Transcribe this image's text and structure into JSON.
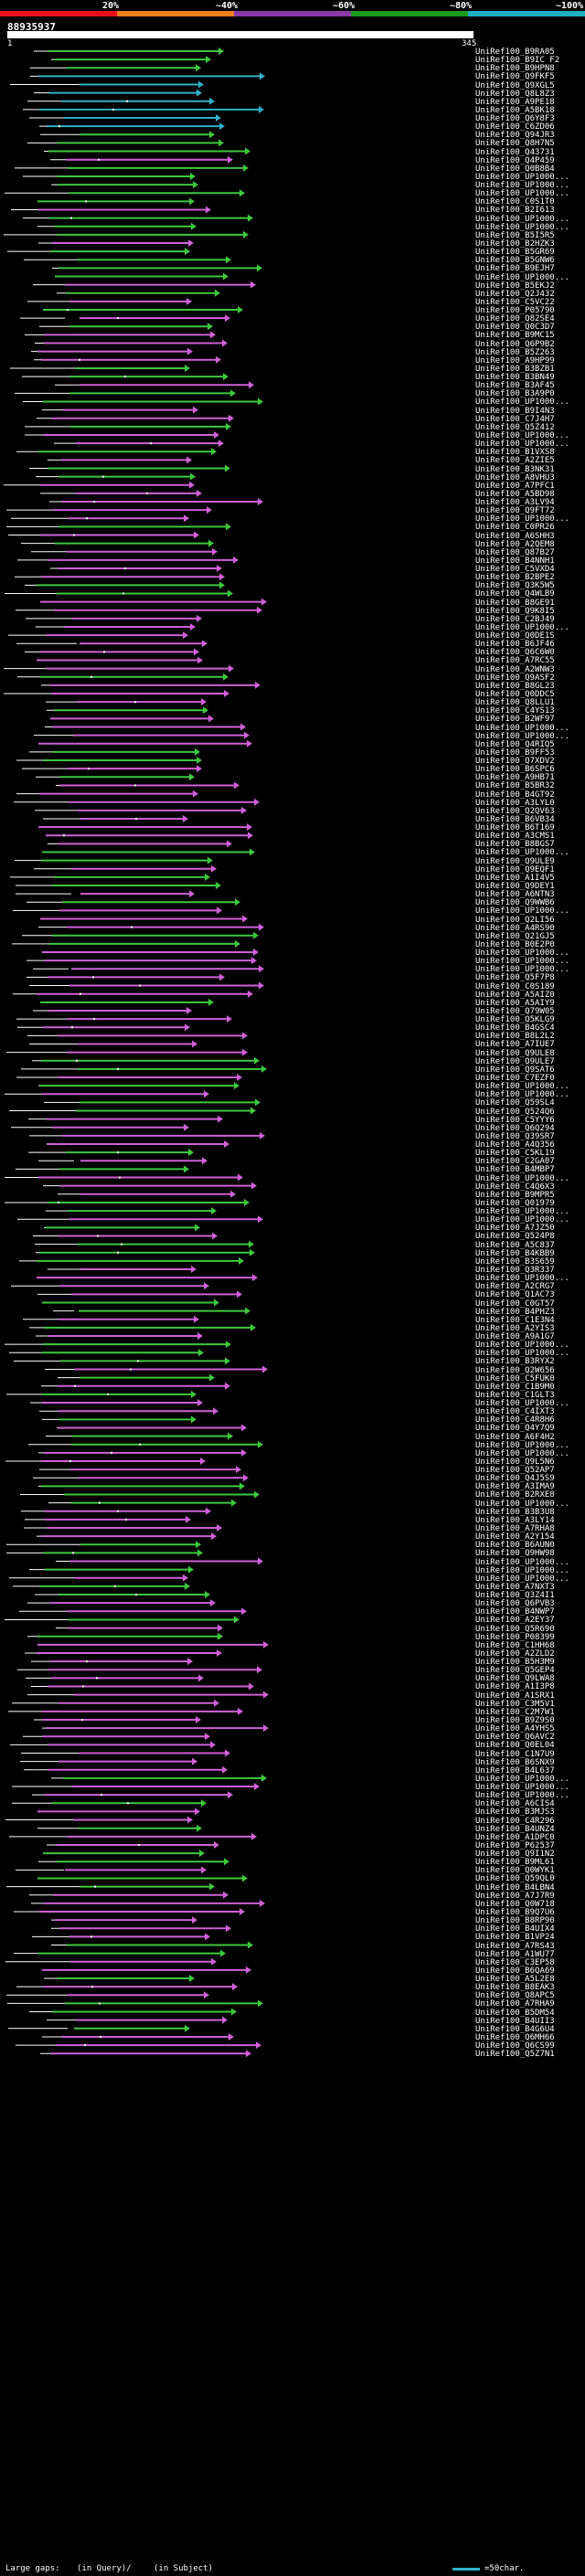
{
  "header": {
    "query_id": "88935937",
    "query_start": "1",
    "query_end": "345",
    "scale": [
      {
        "label": "20%",
        "color": "#e8101c"
      },
      {
        "label": "~40%",
        "color": "#f07f1e"
      },
      {
        "label": "~60%",
        "color": "#8a3aa8"
      },
      {
        "label": "~80%",
        "color": "#1a9a1a"
      },
      {
        "label": "~100%",
        "color": "#1ab0c0"
      }
    ]
  },
  "colors": {
    "high": "#2fb0c8",
    "mid": "#3ec83e",
    "low": "#d060d8",
    "dot": "#ffffff",
    "line": "#ffffff"
  },
  "hits": [
    "UniRef100_B9RA05",
    "UniRef100_B9IC F2",
    "UniRef100_B9HPN8",
    "UniRef100_Q9FKF5",
    "UniRef100_Q9XGL5",
    "UniRef100_Q8L8Z3",
    "UniRef100_A9PE18",
    "UniRef100_A5BK18",
    "UniRef100_Q6Y8F3",
    "UniRef100_C6ZD06",
    "UniRef100_Q94JR3",
    "UniRef100_Q8H7N5",
    "UniRef100_Q43731",
    "UniRef100_Q4P459",
    "UniRef100_Q0B8B4",
    "UniRef100_UP1000...",
    "UniRef100_UP1000...",
    "UniRef100_UP1000...",
    "UniRef100_C0S1T0",
    "UniRef100_B2I613",
    "UniRef100_UP1000...",
    "UniRef100_UP1000...",
    "UniRef100_B5I5R5",
    "UniRef100_B2HZK3",
    "UniRef100_B5GR69",
    "UniRef100_B5GNW6",
    "UniRef100_B9EJH7",
    "UniRef100_UP1000...",
    "UniRef100_B5EKJ2",
    "UniRef100_Q2J432",
    "UniRef100_C5VC22",
    "UniRef100_P05790",
    "UniRef100_Q82SE4",
    "UniRef100_Q0C3D7",
    "UniRef100_B9MC15",
    "UniRef100_Q6P9B2",
    "UniRef100_B5Z263",
    "UniRef100_A9HP99",
    "UniRef100_B3BZB1",
    "UniRef100_B3BN49",
    "UniRef100_B3AF45",
    "UniRef100_B3A9P0",
    "UniRef100_UP1000...",
    "UniRef100_B9I4N3",
    "UniRef100_C7J4H7",
    "UniRef100_Q5Z412",
    "UniRef100_UP1000...",
    "UniRef100_UP1000...",
    "UniRef100_B1VXS8",
    "UniRef100_A2ZIE5",
    "UniRef100_B3NK31",
    "UniRef100_A8VHU3",
    "UniRef100_A7PFC1",
    "UniRef100_A5BD98",
    "UniRef100_A3LV94",
    "UniRef100_Q9FT72",
    "UniRef100_UP1000...",
    "UniRef100_C0PR26",
    "UniRef100_A6SHH3",
    "UniRef100_A2QEM8",
    "UniRef100_Q87B27",
    "UniRef100_B4NNH1",
    "UniRef100_C5VXD4",
    "UniRef100_B2BPE2",
    "UniRef100_Q3K5W5",
    "UniRef100_Q4WLB9",
    "UniRef100_B8GE91",
    "UniRef100_Q9K8I5",
    "UniRef100_C2BJ49",
    "UniRef100_UP1000...",
    "UniRef100_Q0DE1S",
    "UniRef100_B6JF46",
    "UniRef100_Q6C6W0",
    "UniRef100_A7RC55",
    "UniRef100_A2WNW3",
    "UniRef100_Q9ASF2",
    "UniRef100_B8GL23",
    "UniRef100_Q0DDC5",
    "UniRef100_Q8LLU1",
    "UniRef100_C4YS13",
    "UniRef100_B2WF97",
    "UniRef100_UP1000...",
    "UniRef100_UP1000...",
    "UniRef100_Q4RIQ5",
    "UniRef100_B9FF53",
    "UniRef100_Q7XDV2",
    "UniRef100_B6SPC6",
    "UniRef100_A9HB71",
    "UniRef100_B5BR32",
    "UniRef100_B4GT92",
    "UniRef100_A3LYL0",
    "UniRef100_Q2QV63",
    "UniRef100_B6VB34",
    "UniRef100_B6T169",
    "UniRef100_A3CMS1",
    "UniRef100_B8BGS7",
    "UniRef100_UP1000...",
    "UniRef100_Q9ULE9",
    "UniRef100_Q9EQF1",
    "UniRef100_A1I4V5",
    "UniRef100_Q9DEY1",
    "UniRef100_A6NTN3",
    "UniRef100_Q9WWB6",
    "UniRef100_UP1000...",
    "UniRef100_Q2LI56",
    "UniRef100_A4RS90",
    "UniRef100_Q21GJ5",
    "UniRef100_B0E2P0",
    "UniRef100_UP1000...",
    "UniRef100_UP1000...",
    "UniRef100_UP1000...",
    "UniRef100_Q5F7P8",
    "UniRef100_C0S189",
    "UniRef100_A5AIZ0",
    "UniRef100_A5AIY9",
    "UniRef100_Q79W05",
    "UniRef100_Q5KLG9",
    "UniRef100_B4GSC4",
    "UniRef100_B8L2L2",
    "UniRef100_A7IUE7",
    "UniRef100_Q9ULE8",
    "UniRef100_Q9ULE7",
    "UniRef100_Q9SAT6",
    "UniRef100_C7EZF0",
    "UniRef100_UP1000...",
    "UniRef100_UP1000...",
    "UniRef100_Q59SL4",
    "UniRef100_Q524Q6",
    "UniRef100_C5YYY6",
    "UniRef100_Q6Q294",
    "UniRef100_Q39SR7",
    "UniRef100_A4Q356",
    "UniRef100_C5KL19",
    "UniRef100_C2GA07",
    "UniRef100_B4MBP7",
    "UniRef100_UP1000...",
    "UniRef100_C4Q6X3",
    "UniRef100_B9MPR5",
    "UniRef100_Q01979",
    "UniRef100_UP1000...",
    "UniRef100_UP1000...",
    "UniRef100_A7JZ50",
    "UniRef100_Q524P8",
    "UniRef100_A5C837",
    "UniRef100_B4KBB9",
    "UniRef100_B3S659",
    "UniRef100_Q3R337",
    "UniRef100_UP1000...",
    "UniRef100_A2CRG7",
    "UniRef100_Q1AC73",
    "UniRef100_C0GT57",
    "UniRef100_B4PHZ3",
    "UniRef100_C1E3N4",
    "UniRef100_A2YIS3",
    "UniRef100_A9A1G7",
    "UniRef100_UP1000...",
    "UniRef100_UP1000...",
    "UniRef100_B3RYX2",
    "UniRef100_Q2W656",
    "UniRef100_C5FUK0",
    "UniRef100_C1B9M0",
    "UniRef100_C1GLT3",
    "UniRef100_UP1000...",
    "UniRef100_C4IXT3",
    "UniRef100_C4R8H6",
    "UniRef100_Q4Y7Q9",
    "UniRef100_A6F4H2",
    "UniRef100_UP1000...",
    "UniRef100_UP1000...",
    "UniRef100_Q9L5N6",
    "UniRef100_Q52AP7",
    "UniRef100_Q4J5S9",
    "UniRef100_A3IMA9",
    "UniRef100_B2RXE8",
    "UniRef100_UP1000...",
    "UniRef100_B3B3U8",
    "UniRef100_A3LY14",
    "UniRef100_A7RHA8",
    "UniRef100_A2Y154",
    "UniRef100_B6AUN0",
    "UniRef100_Q9HW98",
    "UniRef100_UP1000...",
    "UniRef100_UP1000...",
    "UniRef100_UP1000...",
    "UniRef100_A7NXT3",
    "UniRef100_Q3Z4I1",
    "UniRef100_Q6PVB3",
    "UniRef100_B4NWP7",
    "UniRef100_A2EY37",
    "UniRef100_Q5R690",
    "UniRef100_P08399",
    "UniRef100_C1HH68",
    "UniRef100_A2ZLD2",
    "UniRef100_B5H3M9",
    "UniRef100_Q5GEP4",
    "UniRef100_Q9LWA8",
    "UniRef100_A1I3P8",
    "UniRef100_A1SRX1",
    "UniRef100_C3M5V1",
    "UniRef100_C2M7W1",
    "UniRef100_B9Z9S0",
    "UniRef100_A4YHS5",
    "UniRef100_Q6AVC2",
    "UniRef100_Q0EL04",
    "UniRef100_C1N7U9",
    "UniRef100_B6SNX9",
    "UniRef100_B4L637",
    "UniRef100_UP1000...",
    "UniRef100_UP1000...",
    "UniRef100_UP1000...",
    "UniRef100_A6CIS4",
    "UniRef100_B3MJS3",
    "UniRef100_C4R296",
    "UniRef100_B4UNZ4",
    "UniRef100_A1DPC0",
    "UniRef100_P62537",
    "UniRef100_Q9I1N2",
    "UniRef100_B9ML61",
    "UniRef100_Q0WYK1",
    "UniRef100_Q59QL0",
    "UniRef100_B4LBN4",
    "UniRef100_A7J7R9",
    "UniRef100_Q0W718",
    "UniRef100_B9Q7U6",
    "UniRef100_B8RP90",
    "UniRef100_B4UIX4",
    "UniRef100_B1VP24",
    "UniRef100_A7RS43",
    "UniRef100_A1WU77",
    "UniRef100_C3EP58",
    "UniRef100_B6QA69",
    "UniRef100_A5L2E8",
    "UniRef100_B8EAK3",
    "UniRef100_Q8APC5",
    "UniRef100_A7RHA9",
    "UniRef100_B5DM54",
    "UniRef100_B4UII3",
    "UniRef100_B4G6U4",
    "UniRef100_Q6MH66",
    "UniRef100_Q6CS99",
    "UniRef100_Q5Z7N1"
  ],
  "legend": {
    "label": "Large gaps:",
    "query_text": "(in Query)/",
    "subject_text": "(in Subject)",
    "scale_text": "=50char."
  }
}
